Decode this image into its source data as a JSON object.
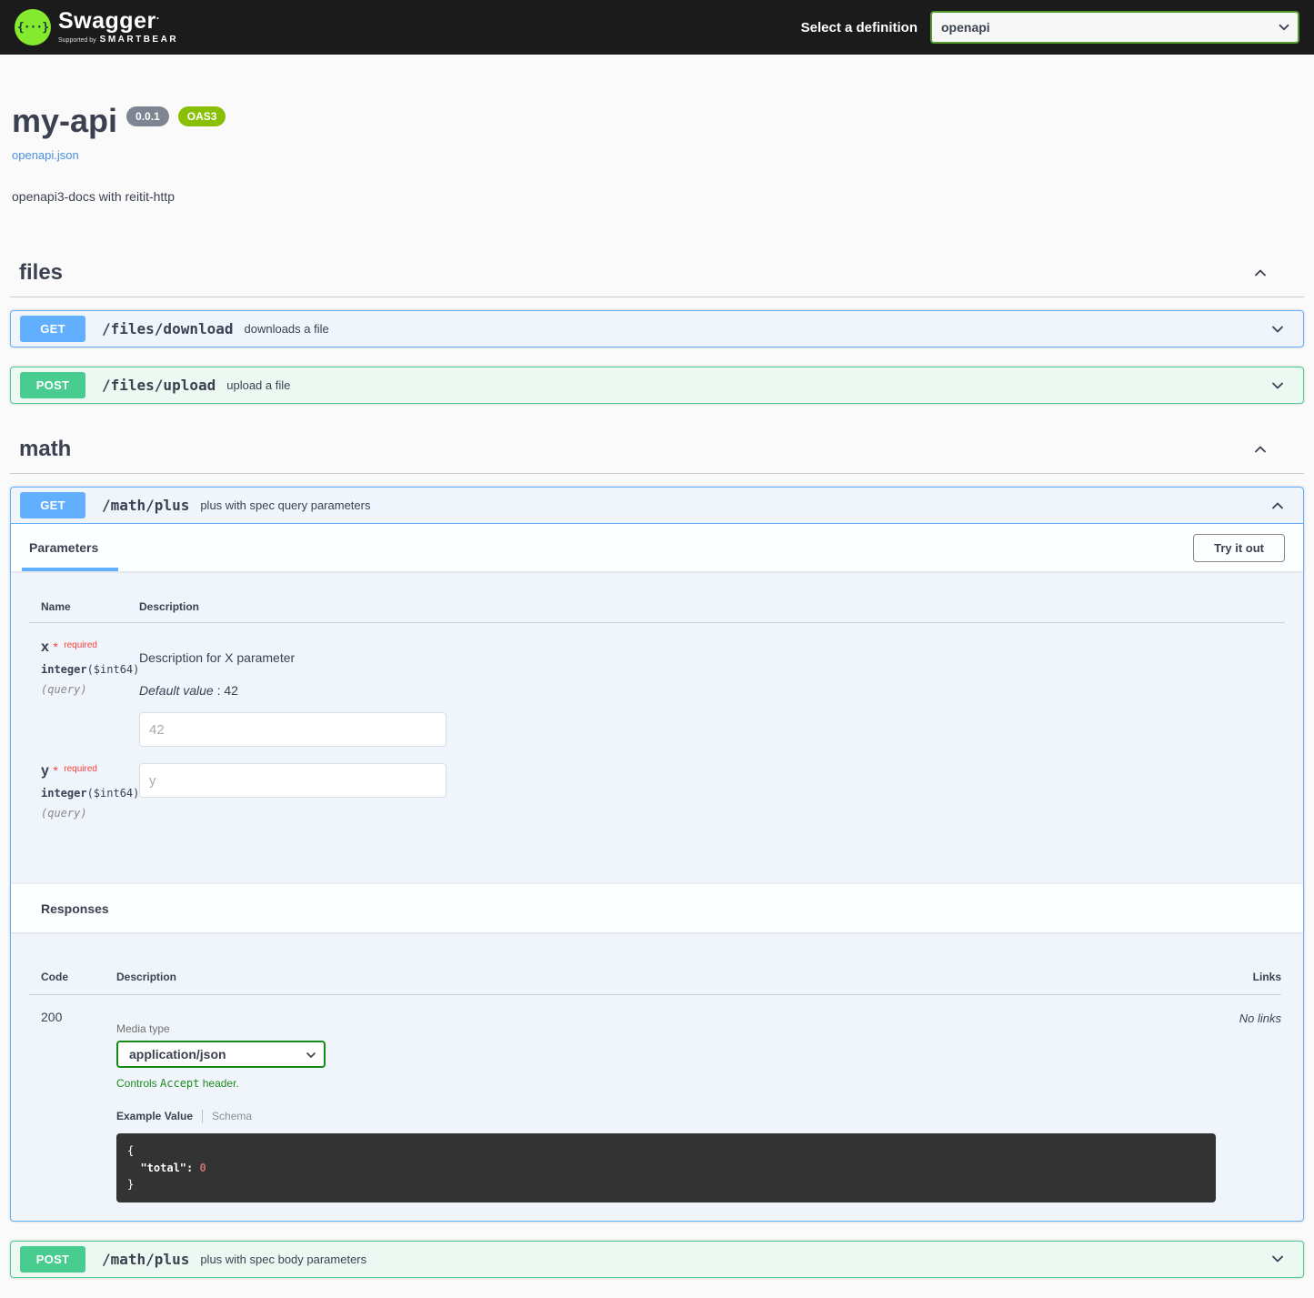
{
  "topbar": {
    "logo_word": "Swagger",
    "logo_supported_by": "Supported by",
    "logo_brand": "SMARTBEAR",
    "select_label": "Select a definition",
    "definition_options": [
      "openapi"
    ]
  },
  "info": {
    "title": "my-api",
    "version_badge": "0.0.1",
    "oas_badge": "OAS3",
    "spec_link": "openapi.json",
    "description": "openapi3-docs with reitit-http"
  },
  "tags": {
    "files": {
      "name": "files",
      "get": {
        "method": "GET",
        "path": "/files/download",
        "summary": "downloads a file"
      },
      "post": {
        "method": "POST",
        "path": "/files/upload",
        "summary": "upload a file"
      }
    },
    "math": {
      "name": "math",
      "get": {
        "method": "GET",
        "path": "/math/plus",
        "summary": "plus with spec query parameters"
      },
      "post": {
        "method": "POST",
        "path": "/math/plus",
        "summary": "plus with spec body parameters"
      }
    }
  },
  "operation": {
    "parameters_tab": "Parameters",
    "try_it_out": "Try it out",
    "col_name": "Name",
    "col_description": "Description",
    "params": {
      "x": {
        "name": "x",
        "star": "*",
        "required": "required",
        "type": "integer",
        "format": "($int64)",
        "location": "(query)",
        "description": "Description for X parameter",
        "default_label": "Default value",
        "default_value": ": 42",
        "placeholder": "42"
      },
      "y": {
        "name": "y",
        "star": "*",
        "required": "required",
        "type": "integer",
        "format": "($int64)",
        "location": "(query)",
        "placeholder": "y"
      }
    },
    "responses": {
      "title": "Responses",
      "col_code": "Code",
      "col_description": "Description",
      "col_links": "Links",
      "r200": {
        "code": "200",
        "media_type_label": "Media type",
        "media_options": [
          "application/json"
        ],
        "accept_note_pre": "Controls ",
        "accept_note_code": "Accept",
        "accept_note_post": " header.",
        "example_value_tab": "Example Value",
        "schema_tab": "Schema",
        "example_open": "{",
        "example_indent": "  ",
        "example_key": "\"total\":",
        "example_space": " ",
        "example_number": "0",
        "example_close": "}",
        "links": "No links"
      }
    }
  },
  "colors": {
    "get": "#61affe",
    "post": "#49cc90",
    "topbar": "#1b1b1b",
    "oas_badge": "#89bf04",
    "version_badge": "#7d8492",
    "link": "#4990e2",
    "code_background": "#333333",
    "code_number": "#ca6f6f",
    "accept_green": "#1d8a1d"
  }
}
